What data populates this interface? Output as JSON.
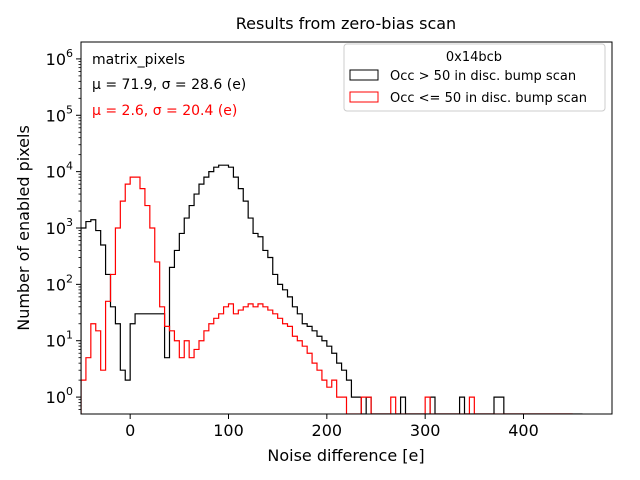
{
  "chart_data": {
    "type": "histogram",
    "title": "Results from zero-bias scan",
    "xlabel": "Noise difference [e]",
    "ylabel": "Number of enabled pixels",
    "xlim": [
      -50,
      490
    ],
    "ylim_log10": [
      -0.3,
      6.3
    ],
    "yscale": "log",
    "bin_width": 5,
    "x_ticks": [
      0,
      100,
      200,
      300,
      400
    ],
    "x_tick_labels": [
      "0",
      "100",
      "200",
      "300",
      "400"
    ],
    "y_tick_exponents": [
      0,
      1,
      2,
      3,
      4,
      5,
      6
    ],
    "y_tick_base": "10",
    "annotations": {
      "dataset": "matrix_pixels",
      "black_stats": "μ = 71.9, σ = 28.6 (e)",
      "red_stats": "μ = 2.6, σ = 20.4 (e)"
    },
    "legend": {
      "title": "0x14bcb",
      "position": "top-right",
      "entries": [
        "Occ > 50 in disc. bump scan",
        "Occ <= 50 in disc. bump scan"
      ]
    },
    "series": [
      {
        "name": "Occ > 50 in disc. bump scan",
        "color": "#000000",
        "bin_edges_start": -50,
        "counts": [
          1000,
          1300,
          1400,
          900,
          500,
          150,
          40,
          20,
          3,
          2,
          20,
          30,
          30,
          30,
          30,
          30,
          30,
          5,
          200,
          400,
          800,
          1500,
          2500,
          4000,
          6000,
          8000,
          10000,
          12000,
          13000,
          13000,
          12000,
          8000,
          5000,
          3000,
          1500,
          800,
          700,
          400,
          300,
          150,
          100,
          80,
          60,
          40,
          30,
          20,
          18,
          15,
          12,
          10,
          8,
          6,
          4,
          3,
          2,
          1,
          1,
          0.5,
          1,
          0.5,
          0.5,
          0.5,
          0.5,
          0.5,
          0.5,
          1,
          0.5,
          0.5,
          0.5,
          0.5,
          0.5,
          1,
          0.5,
          0.5,
          0.5,
          0.5,
          0.5,
          1,
          0.5,
          0.5,
          0.5,
          0.5,
          0.5,
          0.5,
          1,
          1,
          0.5,
          0.5,
          0.5,
          0.5,
          0.5,
          0.5,
          0.5,
          0.5,
          0.5,
          0.5,
          0.5,
          0.5,
          0.5,
          0.5,
          0.5,
          0.5
        ]
      },
      {
        "name": "Occ <= 50 in disc. bump scan",
        "color": "#ff0000",
        "bin_edges_start": -50,
        "counts": [
          2,
          5,
          20,
          15,
          3,
          50,
          150,
          1000,
          3000,
          6000,
          8000,
          8000,
          5000,
          2500,
          1000,
          250,
          40,
          18,
          15,
          10,
          5,
          10,
          5,
          7,
          10,
          15,
          20,
          25,
          30,
          40,
          45,
          30,
          35,
          40,
          45,
          40,
          45,
          40,
          35,
          30,
          25,
          20,
          18,
          12,
          10,
          8,
          6,
          4,
          3,
          2,
          1.5,
          2,
          1,
          1,
          0.5,
          0.5,
          0.5,
          1,
          1,
          0.5,
          0.5,
          0.5,
          0.5,
          1,
          0.5,
          0.5,
          0.5,
          0.5,
          0.5,
          0.5,
          1,
          0.5,
          0.5,
          0.5,
          0.5,
          0.5,
          0.5,
          0.5,
          0.5,
          1,
          0.5,
          0.5,
          0.5,
          0.5,
          0.5,
          0.5,
          0.5,
          0.5,
          0.5,
          0.5,
          0.5,
          0.5,
          0.5,
          0.5,
          0.5,
          0.5,
          0.5,
          0.5,
          0.5,
          0.5
        ]
      }
    ]
  }
}
